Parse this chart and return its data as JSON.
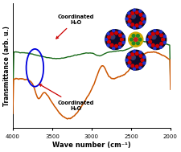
{
  "xlabel": "Wave number (cm⁻¹)",
  "ylabel": "Transmittance (arb. u.)",
  "background_color": "#ffffff",
  "green_color": "#1a6b1a",
  "orange_color": "#cc5500",
  "blue_ellipse_color": "#0000dd",
  "red_color": "#cc0000",
  "annotation_top": "Coordinated\nH₂O",
  "annotation_bottom": "Coordinated\nH₂O"
}
